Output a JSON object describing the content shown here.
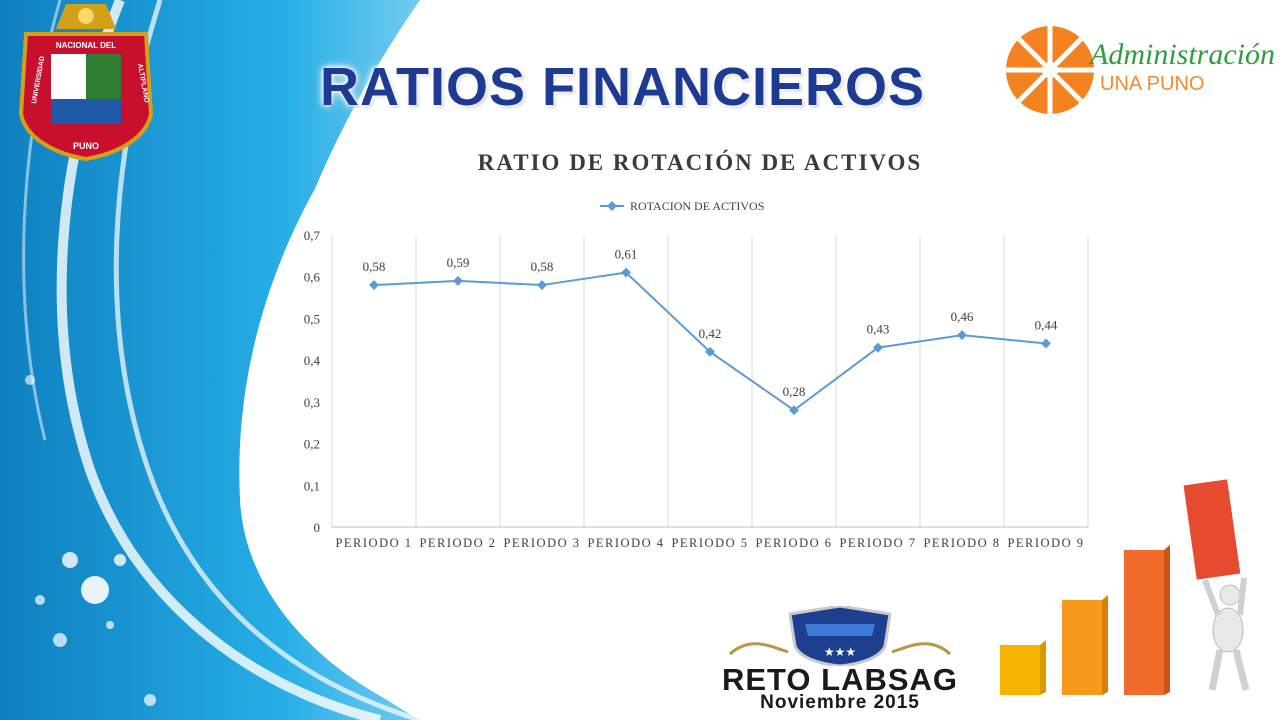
{
  "slide": {
    "title": "RATIOS  FINANCIEROS"
  },
  "logos": {
    "university_seal_text": [
      "NACIONAL DEL",
      "UNIVERSIDAD",
      "ALTIPLANO",
      "PUNO"
    ],
    "admin_title": "Administración",
    "admin_subtitle": "UNA PUNO"
  },
  "footer": {
    "badge_title": "RETO LABSAG",
    "badge_date": "Noviembre 2015"
  },
  "colors": {
    "line": "#5b9bd5",
    "title": "#1f3a93",
    "background_blue": "#1ea0dc"
  },
  "chart_data": {
    "type": "line",
    "title": "RATIO DE ROTACIÓN DE ACTIVOS",
    "categories": [
      "PERIODO 1",
      "PERIODO 2",
      "PERIODO 3",
      "PERIODO 4",
      "PERIODO 5",
      "PERIODO 6",
      "PERIODO 7",
      "PERIODO 8",
      "PERIODO 9"
    ],
    "series": [
      {
        "name": "ROTACION DE ACTIVOS",
        "values": [
          0.58,
          0.59,
          0.58,
          0.61,
          0.42,
          0.28,
          0.43,
          0.46,
          0.44
        ],
        "labels": [
          "0,58",
          "0,59",
          "0,58",
          "0,61",
          "0,42",
          "0,28",
          "0,43",
          "0,46",
          "0,44"
        ]
      }
    ],
    "yticks": [
      "0",
      "0,1",
      "0,2",
      "0,3",
      "0,4",
      "0,5",
      "0,6",
      "0,7"
    ],
    "ylim": [
      0,
      0.7
    ],
    "legend": "top-center",
    "grid": "vertical"
  }
}
